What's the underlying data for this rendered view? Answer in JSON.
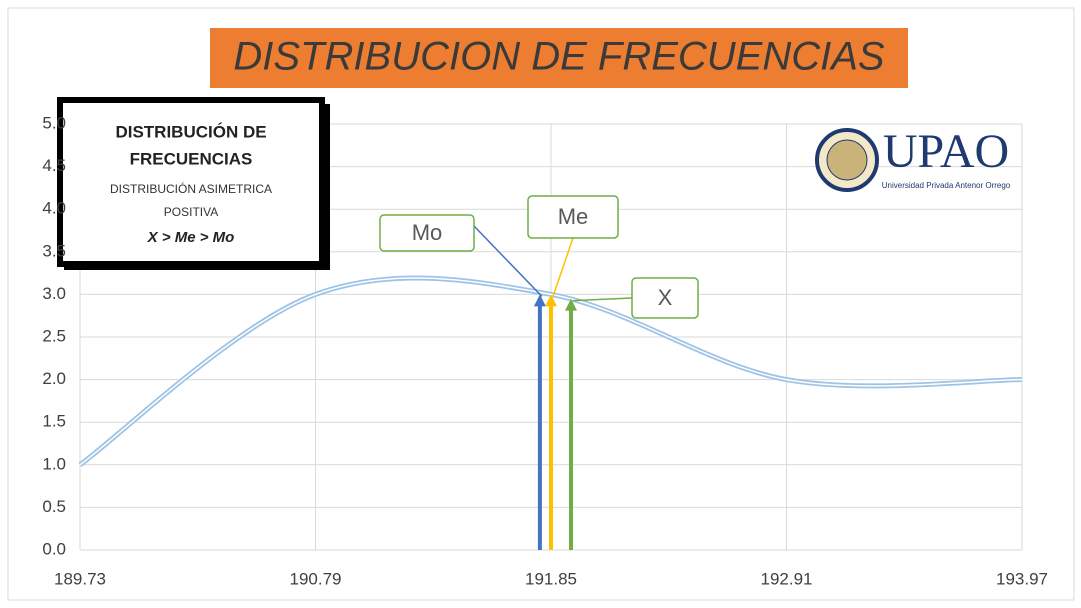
{
  "chart_data": {
    "type": "line",
    "title": "DISTRIBUCION DE FRECUENCIAS",
    "x": [
      189.73,
      190.79,
      191.85,
      192.91,
      193.97
    ],
    "series": [
      {
        "color": "#9dc3e6",
        "values": [
          1.0,
          3.0,
          3.0,
          2.0,
          2.0
        ]
      }
    ],
    "xlim": [
      189.73,
      193.97
    ],
    "xticks": [
      189.73,
      190.79,
      191.85,
      192.91,
      193.97
    ],
    "ylim": [
      0,
      5
    ],
    "yticks": [
      {
        "value": 0,
        "label": "0.0"
      },
      {
        "value": 0.5,
        "label": "0.5"
      },
      {
        "value": 1,
        "label": "1.0"
      },
      {
        "value": 1.5,
        "label": "1.5"
      },
      {
        "value": 2,
        "label": "2.0"
      },
      {
        "value": 2.5,
        "label": "2.5"
      },
      {
        "value": 3,
        "label": "3.0"
      },
      {
        "value": 3.5,
        "label": "3.5"
      },
      {
        "value": 4,
        "label": "4.0"
      },
      {
        "value": 4.5,
        "label": "4.5"
      },
      {
        "value": 5,
        "label": "5.0"
      }
    ],
    "grid": true,
    "annotations": [
      {
        "label": "Mo",
        "x": 191.8,
        "y": 3.0,
        "color": "#4472c4"
      },
      {
        "label": "Me",
        "x": 191.85,
        "y": 3.0,
        "color": "#ffc000"
      },
      {
        "label": "X",
        "x": 191.94,
        "y": 2.95,
        "color": "#70ad47"
      }
    ],
    "inset": {
      "lines": [
        "DISTRIBUCIÓN DE",
        "FRECUENCIAS",
        "DISTRIBUCIÓN ASIMETRICA",
        "POSITIVA",
        "X >  Me > Mo"
      ]
    },
    "logo": {
      "name": "UPAO",
      "subtitle": "Universidad Privada Antenor Orrego"
    }
  }
}
